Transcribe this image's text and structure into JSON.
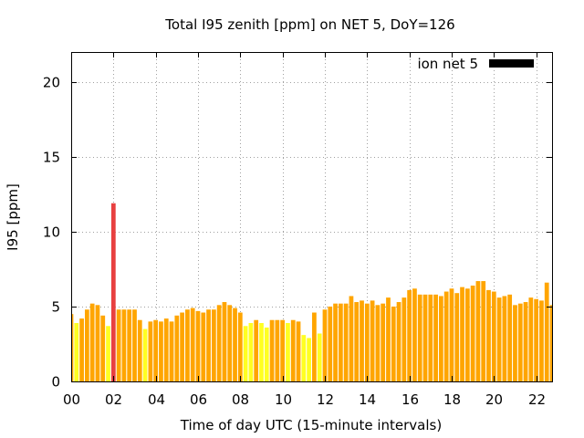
{
  "chart_data": {
    "type": "bar",
    "title": "Total I95 zenith [ppm] on NET 5, DoY=126",
    "xlabel": "Time of day UTC (15-minute intervals)",
    "ylabel": "I95 [ppm]",
    "xlim": [
      0,
      22.75
    ],
    "ylim": [
      0,
      22
    ],
    "x_ticks": [
      {
        "value": 0,
        "label": "00"
      },
      {
        "value": 2,
        "label": "02"
      },
      {
        "value": 4,
        "label": "04"
      },
      {
        "value": 6,
        "label": "06"
      },
      {
        "value": 8,
        "label": "08"
      },
      {
        "value": 10,
        "label": "10"
      },
      {
        "value": 12,
        "label": "12"
      },
      {
        "value": 14,
        "label": "14"
      },
      {
        "value": 16,
        "label": "16"
      },
      {
        "value": 18,
        "label": "18"
      },
      {
        "value": 20,
        "label": "20"
      },
      {
        "value": 22,
        "label": "22"
      }
    ],
    "y_ticks": [
      {
        "value": 0,
        "label": "0"
      },
      {
        "value": 5,
        "label": "5"
      },
      {
        "value": 10,
        "label": "10"
      },
      {
        "value": 15,
        "label": "15"
      },
      {
        "value": 20,
        "label": "20"
      }
    ],
    "grid": true,
    "legend": {
      "position": "top-right",
      "entries": [
        {
          "label": "ion net 5",
          "color": "#000000"
        }
      ]
    },
    "bar_interval_hours": 0.25,
    "colors": {
      "low": "#ffff22",
      "medium": "#ffa500",
      "high": "#e84040"
    },
    "series": [
      {
        "name": "ion net 5",
        "x": [
          0,
          0.25,
          0.5,
          0.75,
          1,
          1.25,
          1.5,
          1.75,
          2,
          2.25,
          2.5,
          2.75,
          3,
          3.25,
          3.5,
          3.75,
          4,
          4.25,
          4.5,
          4.75,
          5,
          5.25,
          5.5,
          5.75,
          6,
          6.25,
          6.5,
          6.75,
          7,
          7.25,
          7.5,
          7.75,
          8,
          8.25,
          8.5,
          8.75,
          9,
          9.25,
          9.5,
          9.75,
          10,
          10.25,
          10.5,
          10.75,
          11,
          11.25,
          11.5,
          11.75,
          12,
          12.25,
          12.5,
          12.75,
          13,
          13.25,
          13.5,
          13.75,
          14,
          14.25,
          14.5,
          14.75,
          15,
          15.25,
          15.5,
          15.75,
          16,
          16.25,
          16.5,
          16.75,
          17,
          17.25,
          17.5,
          17.75,
          18,
          18.25,
          18.5,
          18.75,
          19,
          19.25,
          19.5,
          19.75,
          20,
          20.25,
          20.5,
          20.75,
          21,
          21.25,
          21.5,
          21.75,
          22,
          22.25,
          22.5,
          22.75
        ],
        "values": [
          4.5,
          3.9,
          4.2,
          4.8,
          5.2,
          5.1,
          4.4,
          3.7,
          11.9,
          4.8,
          4.8,
          4.8,
          4.8,
          4.1,
          3.5,
          4.0,
          4.1,
          4.0,
          4.2,
          4.0,
          4.4,
          4.6,
          4.8,
          4.9,
          4.7,
          4.6,
          4.8,
          4.8,
          5.1,
          5.3,
          5.1,
          4.9,
          4.6,
          3.7,
          3.9,
          4.1,
          3.9,
          3.6,
          4.1,
          4.1,
          4.1,
          3.9,
          4.1,
          4.0,
          3.1,
          2.9,
          4.6,
          3.2,
          4.8,
          5.0,
          5.2,
          5.2,
          5.2,
          5.7,
          5.3,
          5.4,
          5.2,
          5.4,
          5.1,
          5.2,
          5.6,
          5.0,
          5.3,
          5.6,
          6.1,
          6.2,
          5.8,
          5.8,
          5.8,
          5.8,
          5.7,
          6.0,
          6.2,
          5.9,
          6.3,
          6.2,
          6.4,
          6.7,
          6.7,
          6.1,
          6.0,
          5.6,
          5.7,
          5.8,
          5.1,
          5.2,
          5.3,
          5.6,
          5.5,
          5.4,
          6.6,
          5.1
        ],
        "levels": [
          "medium",
          "low",
          "medium",
          "medium",
          "medium",
          "medium",
          "medium",
          "low",
          "high",
          "medium",
          "medium",
          "medium",
          "medium",
          "medium",
          "low",
          "medium",
          "medium",
          "medium",
          "medium",
          "medium",
          "medium",
          "medium",
          "medium",
          "medium",
          "medium",
          "medium",
          "medium",
          "medium",
          "medium",
          "medium",
          "medium",
          "medium",
          "medium",
          "low",
          "low",
          "medium",
          "low",
          "low",
          "medium",
          "medium",
          "medium",
          "low",
          "medium",
          "medium",
          "low",
          "low",
          "medium",
          "low",
          "medium",
          "medium",
          "medium",
          "medium",
          "medium",
          "medium",
          "medium",
          "medium",
          "medium",
          "medium",
          "medium",
          "medium",
          "medium",
          "medium",
          "medium",
          "medium",
          "medium",
          "medium",
          "medium",
          "medium",
          "medium",
          "medium",
          "medium",
          "medium",
          "medium",
          "medium",
          "medium",
          "medium",
          "medium",
          "medium",
          "medium",
          "medium",
          "medium",
          "medium",
          "medium",
          "medium",
          "medium",
          "medium",
          "medium",
          "medium",
          "medium",
          "medium",
          "medium",
          "medium"
        ]
      }
    ]
  }
}
